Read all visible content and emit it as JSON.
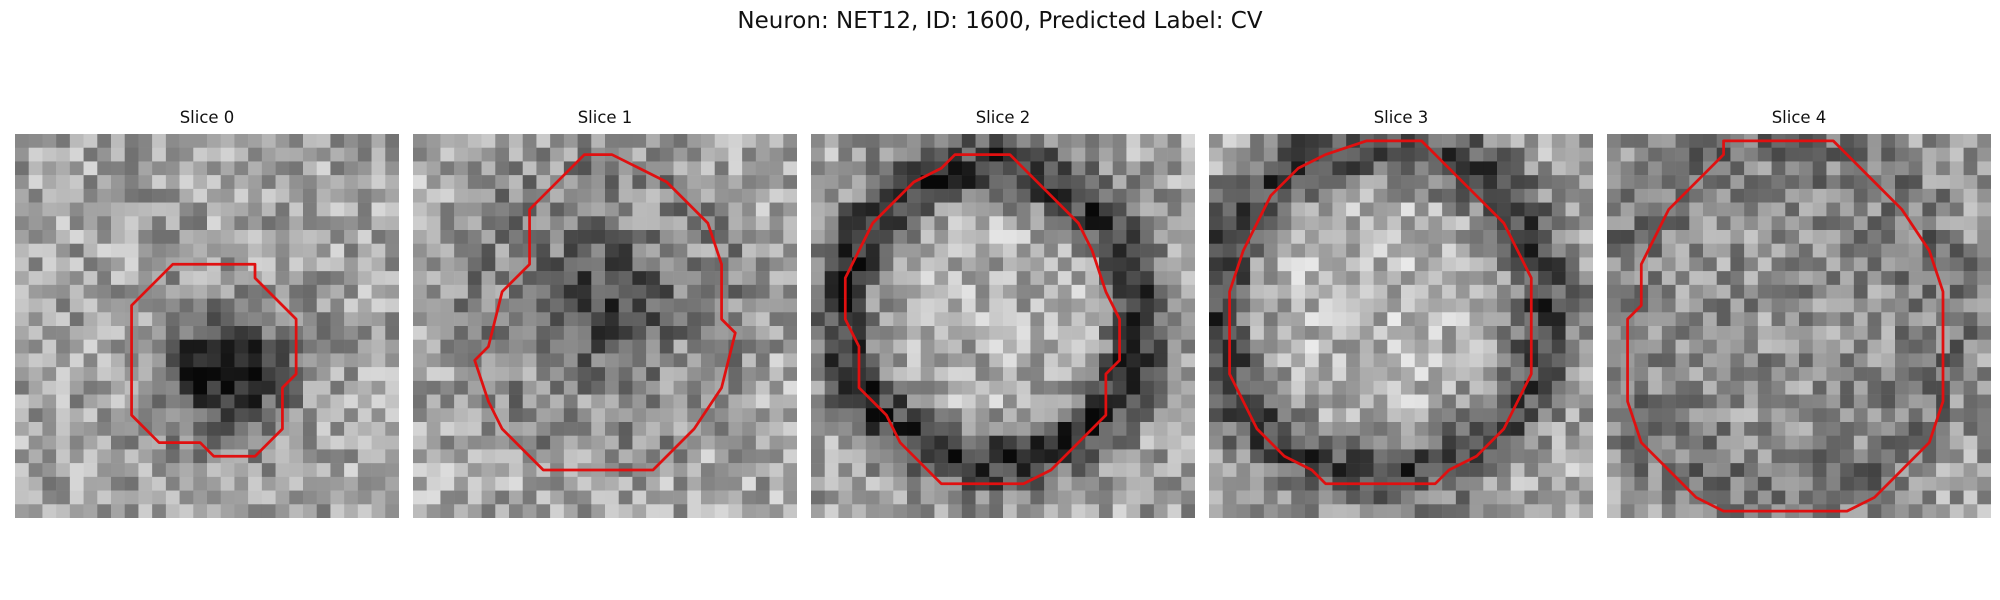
{
  "figure": {
    "title": "Neuron: NET12, ID: 1600, Predicted Label: CV"
  },
  "panels": [
    {
      "title": "Slice 0",
      "seed": 11,
      "bg_mean": 0.64,
      "dark_core": 0.85,
      "ring_dark": 0.0,
      "inner_light": 0.0
    },
    {
      "title": "Slice 1",
      "seed": 23,
      "bg_mean": 0.66,
      "dark_core": 0.62,
      "ring_dark": 0.1,
      "inner_light": 0.1
    },
    {
      "title": "Slice 2",
      "seed": 37,
      "bg_mean": 0.64,
      "dark_core": 0.05,
      "ring_dark": 0.55,
      "inner_light": 0.15
    },
    {
      "title": "Slice 3",
      "seed": 41,
      "bg_mean": 0.66,
      "dark_core": 0.0,
      "ring_dark": 0.5,
      "inner_light": 0.1
    },
    {
      "title": "Slice 4",
      "seed": 53,
      "bg_mean": 0.62,
      "dark_core": 0.0,
      "ring_dark": 0.2,
      "inner_light": -0.1
    }
  ],
  "contours": [
    [
      [
        11.5,
        9.5
      ],
      [
        8.5,
        12.5
      ],
      [
        8.5,
        20.5
      ],
      [
        10.5,
        22.5
      ],
      [
        13.5,
        22.5
      ],
      [
        14.5,
        23.5
      ],
      [
        17.5,
        23.5
      ],
      [
        19.5,
        21.5
      ],
      [
        19.5,
        18.5
      ],
      [
        20.5,
        17.5
      ],
      [
        20.5,
        13.5
      ],
      [
        17.5,
        10.5
      ],
      [
        17.5,
        9.5
      ]
    ],
    [
      [
        11.5,
        2.5
      ],
      [
        8.5,
        5.5
      ],
      [
        8.5,
        9.5
      ],
      [
        6.5,
        11.5
      ],
      [
        5.5,
        15.5
      ],
      [
        4.5,
        16.5
      ],
      [
        5.5,
        19.5
      ],
      [
        6.5,
        21.5
      ],
      [
        9.5,
        24.5
      ],
      [
        17.5,
        24.5
      ],
      [
        20.5,
        21.5
      ],
      [
        22.5,
        18.5
      ],
      [
        23.5,
        14.5
      ],
      [
        22.5,
        13.5
      ],
      [
        22.5,
        9.5
      ],
      [
        21.5,
        6.5
      ],
      [
        18.5,
        3.5
      ],
      [
        16.5,
        2.5
      ],
      [
        14.5,
        1.5
      ],
      [
        12.5,
        1.5
      ]
    ],
    [
      [
        9.5,
        2.5
      ],
      [
        7.5,
        3.5
      ],
      [
        4.5,
        6.5
      ],
      [
        2.5,
        10.5
      ],
      [
        2.5,
        13.5
      ],
      [
        3.5,
        15.5
      ],
      [
        3.5,
        18.5
      ],
      [
        5.5,
        20.5
      ],
      [
        6.5,
        22.5
      ],
      [
        9.5,
        25.5
      ],
      [
        15.5,
        25.5
      ],
      [
        17.5,
        24.5
      ],
      [
        19.5,
        22.5
      ],
      [
        21.5,
        20.5
      ],
      [
        21.5,
        17.5
      ],
      [
        22.5,
        16.5
      ],
      [
        22.5,
        13.5
      ],
      [
        21.5,
        11.5
      ],
      [
        20.5,
        8.5
      ],
      [
        19.5,
        6.5
      ],
      [
        17.5,
        4.5
      ],
      [
        15.5,
        2.5
      ],
      [
        14.5,
        1.5
      ],
      [
        10.5,
        1.5
      ]
    ],
    [
      [
        11.5,
        0.5
      ],
      [
        8.5,
        1.5
      ],
      [
        6.5,
        2.5
      ],
      [
        4.5,
        4.5
      ],
      [
        3.5,
        6.5
      ],
      [
        2.5,
        8.5
      ],
      [
        1.5,
        11.5
      ],
      [
        1.5,
        17.5
      ],
      [
        2.5,
        19.5
      ],
      [
        3.5,
        21.5
      ],
      [
        5.5,
        23.5
      ],
      [
        7.5,
        24.5
      ],
      [
        8.5,
        25.5
      ],
      [
        16.5,
        25.5
      ],
      [
        17.5,
        24.5
      ],
      [
        19.5,
        23.5
      ],
      [
        21.5,
        21.5
      ],
      [
        22.5,
        19.5
      ],
      [
        23.5,
        17.5
      ],
      [
        23.5,
        10.5
      ],
      [
        22.5,
        8.5
      ],
      [
        21.5,
        6.5
      ],
      [
        19.5,
        4.5
      ],
      [
        17.5,
        2.5
      ],
      [
        16.5,
        1.5
      ],
      [
        15.5,
        0.5
      ]
    ],
    [
      [
        8.5,
        1.5
      ],
      [
        7.5,
        2.5
      ],
      [
        4.5,
        5.5
      ],
      [
        3.5,
        7.5
      ],
      [
        2.5,
        9.5
      ],
      [
        2.5,
        12.5
      ],
      [
        1.5,
        13.5
      ],
      [
        1.5,
        19.5
      ],
      [
        2.5,
        22.5
      ],
      [
        4.5,
        24.5
      ],
      [
        6.5,
        26.5
      ],
      [
        8.5,
        27.5
      ],
      [
        17.5,
        27.5
      ],
      [
        19.5,
        26.5
      ],
      [
        21.5,
        24.5
      ],
      [
        23.5,
        22.5
      ],
      [
        24.5,
        19.5
      ],
      [
        24.5,
        11.5
      ],
      [
        23.5,
        8.5
      ],
      [
        21.5,
        5.5
      ],
      [
        19.5,
        3.5
      ],
      [
        17.5,
        1.5
      ],
      [
        16.5,
        0.5
      ],
      [
        8.5,
        0.5
      ]
    ]
  ]
}
